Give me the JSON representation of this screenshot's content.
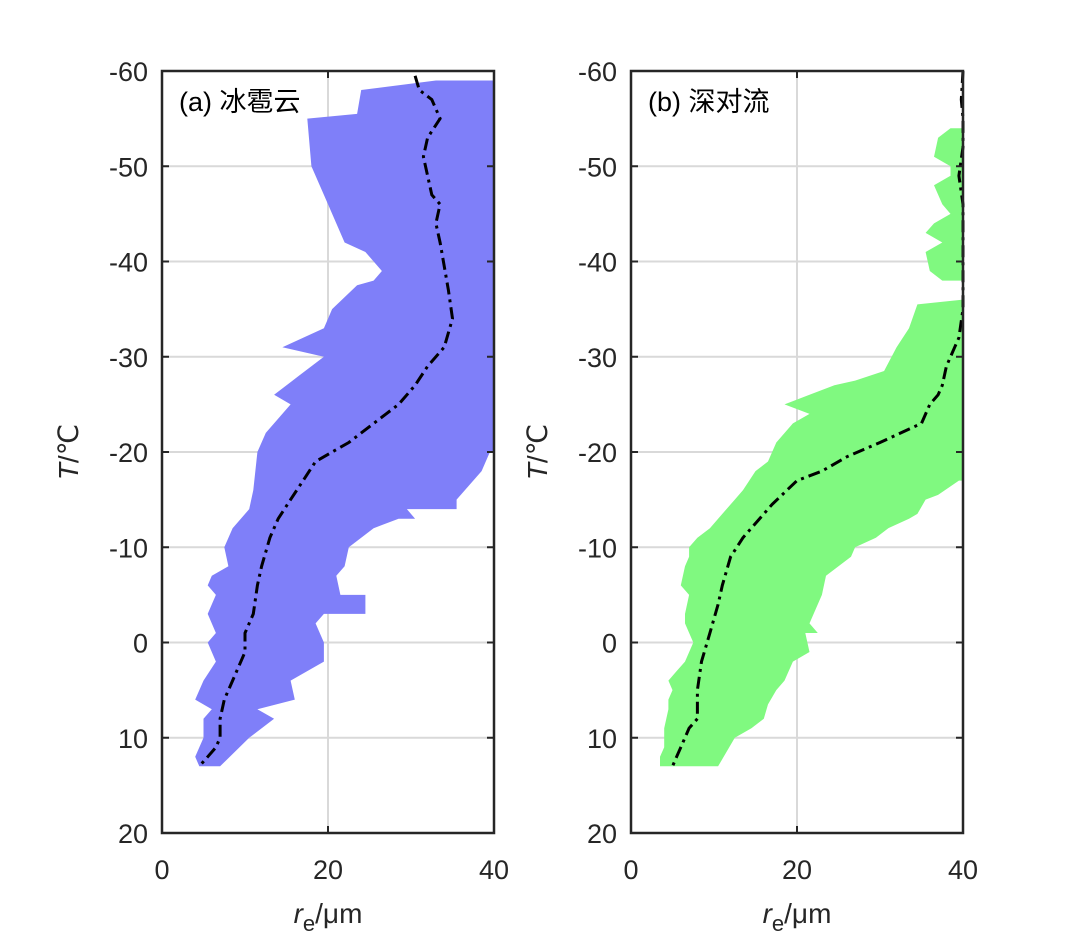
{
  "chart_data": [
    {
      "type": "area",
      "panel_label": "(a) 冰雹云",
      "xlabel_main": "r",
      "xlabel_sub": "e",
      "xlabel_unit": "/μm",
      "ylabel_main": "T",
      "ylabel_unit": "/℃",
      "xlim": [
        0,
        40
      ],
      "ylim": [
        -60,
        20
      ],
      "y_reversed": true,
      "xticks": [
        0,
        20,
        40
      ],
      "yticks": [
        -60,
        -50,
        -40,
        -30,
        -20,
        -10,
        0,
        10,
        20
      ],
      "grid": true,
      "fill_color": "#7f7ff9",
      "series": [
        {
          "kind": "band",
          "left": [
            [
              33.0,
              -59
            ],
            [
              24.0,
              -58
            ],
            [
              23.5,
              -55.5
            ],
            [
              17.5,
              -55
            ],
            [
              18,
              -50
            ],
            [
              20,
              -46
            ],
            [
              22,
              -42
            ],
            [
              24.5,
              -41
            ],
            [
              26.5,
              -39
            ],
            [
              25.5,
              -38
            ],
            [
              23.5,
              -37.5
            ],
            [
              20.5,
              -35
            ],
            [
              19.5,
              -33
            ],
            [
              14.5,
              -31
            ],
            [
              19.5,
              -30
            ],
            [
              16.5,
              -28
            ],
            [
              13.5,
              -26
            ],
            [
              15.5,
              -25
            ],
            [
              12.5,
              -22
            ],
            [
              11.5,
              -20
            ],
            [
              11,
              -16
            ],
            [
              10.5,
              -14
            ],
            [
              8.5,
              -12
            ],
            [
              7.5,
              -10
            ],
            [
              8.0,
              -8
            ],
            [
              6.0,
              -7
            ],
            [
              5.5,
              -6
            ],
            [
              6.5,
              -5
            ],
            [
              5.5,
              -3
            ],
            [
              6.5,
              -1
            ],
            [
              5.5,
              0
            ],
            [
              6.5,
              2
            ],
            [
              5.0,
              4
            ],
            [
              4.0,
              6
            ],
            [
              6.0,
              7
            ],
            [
              5.0,
              8
            ],
            [
              5.0,
              10
            ],
            [
              4.0,
              12
            ],
            [
              4.5,
              13
            ]
          ],
          "right": [
            [
              4.5,
              13
            ],
            [
              7.0,
              13
            ],
            [
              10.5,
              10
            ],
            [
              13.5,
              8
            ],
            [
              11.5,
              7
            ],
            [
              16,
              6
            ],
            [
              15.5,
              4
            ],
            [
              19.5,
              2
            ],
            [
              19.5,
              0
            ],
            [
              18.5,
              -2
            ],
            [
              19.5,
              -3
            ],
            [
              24.5,
              -3
            ],
            [
              24.5,
              -5
            ],
            [
              21.5,
              -5
            ],
            [
              21.0,
              -7
            ],
            [
              22.0,
              -8
            ],
            [
              22.5,
              -10
            ],
            [
              25.5,
              -12
            ],
            [
              28.5,
              -13
            ],
            [
              30.5,
              -13
            ],
            [
              29.5,
              -14
            ],
            [
              35.5,
              -14
            ],
            [
              35.5,
              -15
            ],
            [
              38.5,
              -18
            ],
            [
              39.5,
              -20
            ],
            [
              40,
              -20
            ],
            [
              40,
              -59
            ]
          ]
        },
        {
          "kind": "line",
          "name": "",
          "points": [
            [
              30.5,
              -59.5
            ],
            [
              31,
              -58
            ],
            [
              32.5,
              -57
            ],
            [
              33.5,
              -55
            ],
            [
              32,
              -53
            ],
            [
              31.5,
              -51
            ],
            [
              32.5,
              -47
            ],
            [
              33.5,
              -46
            ],
            [
              33,
              -44
            ],
            [
              33.5,
              -42
            ],
            [
              34.5,
              -37
            ],
            [
              35,
              -34
            ],
            [
              34,
              -31
            ],
            [
              32,
              -29
            ],
            [
              30.5,
              -27
            ],
            [
              28.5,
              -25
            ],
            [
              27,
              -24
            ],
            [
              22.5,
              -21
            ],
            [
              20.5,
              -20
            ],
            [
              18.5,
              -19
            ],
            [
              17,
              -17
            ],
            [
              15.5,
              -15
            ],
            [
              14,
              -13
            ],
            [
              13,
              -11
            ],
            [
              12,
              -8
            ],
            [
              11.5,
              -6
            ],
            [
              11,
              -3
            ],
            [
              10,
              -1
            ],
            [
              10,
              1
            ],
            [
              8.5,
              4
            ],
            [
              7.5,
              6
            ],
            [
              7,
              8
            ],
            [
              7,
              10
            ],
            [
              6.5,
              11
            ],
            [
              5.5,
              12
            ],
            [
              4.5,
              13
            ]
          ]
        }
      ]
    },
    {
      "type": "area",
      "panel_label": "(b) 深对流",
      "xlabel_main": "r",
      "xlabel_sub": "e",
      "xlabel_unit": "/μm",
      "ylabel_main": "T",
      "ylabel_unit": "/℃",
      "xlim": [
        0,
        40
      ],
      "ylim": [
        -60,
        20
      ],
      "y_reversed": true,
      "xticks": [
        0,
        20,
        40
      ],
      "yticks": [
        -60,
        -50,
        -40,
        -30,
        -20,
        -10,
        0,
        10,
        20
      ],
      "grid": true,
      "fill_color": "#80f980",
      "series": [
        {
          "kind": "band",
          "left": [
            [
              38.5,
              -54
            ],
            [
              37,
              -53
            ],
            [
              36.5,
              -51
            ],
            [
              38.5,
              -50
            ],
            [
              38.5,
              -49
            ],
            [
              36.5,
              -48
            ],
            [
              37.5,
              -46
            ],
            [
              38.5,
              -45
            ],
            [
              36.5,
              -44
            ],
            [
              35.5,
              -43
            ],
            [
              37.5,
              -42
            ],
            [
              35.5,
              -41
            ],
            [
              36,
              -39
            ],
            [
              37.5,
              -38
            ]
          ],
          "right": [
            [
              37.5,
              -38
            ],
            [
              40,
              -38
            ],
            [
              40,
              -54
            ]
          ]
        },
        {
          "kind": "band",
          "left": [
            [
              40,
              -36
            ],
            [
              34.5,
              -35.5
            ],
            [
              33.5,
              -33
            ],
            [
              32,
              -31
            ],
            [
              30.5,
              -28.5
            ],
            [
              27,
              -27.5
            ],
            [
              24.5,
              -27
            ],
            [
              21.5,
              -26
            ],
            [
              18.5,
              -25
            ],
            [
              21.5,
              -24
            ],
            [
              19.5,
              -23
            ],
            [
              17.5,
              -21
            ],
            [
              16.5,
              -19
            ],
            [
              15,
              -18
            ],
            [
              13.5,
              -16
            ],
            [
              12.5,
              -15
            ],
            [
              10.5,
              -13
            ],
            [
              9.5,
              -12
            ],
            [
              8,
              -11
            ],
            [
              7,
              -10
            ],
            [
              7,
              -9
            ],
            [
              6.5,
              -8
            ],
            [
              6,
              -6
            ],
            [
              7,
              -5
            ],
            [
              6.5,
              -3
            ],
            [
              6.5,
              -2
            ],
            [
              7.5,
              0
            ],
            [
              6.5,
              2
            ],
            [
              5.5,
              3
            ],
            [
              4.5,
              4
            ],
            [
              5,
              5
            ],
            [
              4.5,
              6
            ],
            [
              4.5,
              7
            ],
            [
              4,
              9
            ],
            [
              4,
              11
            ],
            [
              3.5,
              12
            ],
            [
              3.5,
              13
            ]
          ],
          "right": [
            [
              3.5,
              13
            ],
            [
              10.5,
              13
            ],
            [
              12.5,
              10
            ],
            [
              14.5,
              9
            ],
            [
              16,
              8
            ],
            [
              16.5,
              6.5
            ],
            [
              17.5,
              5
            ],
            [
              18.5,
              4
            ],
            [
              19.5,
              2
            ],
            [
              21.5,
              1
            ],
            [
              21,
              -1
            ],
            [
              22.5,
              -1
            ],
            [
              21.5,
              -2
            ],
            [
              23,
              -5
            ],
            [
              23.5,
              -7
            ],
            [
              26.5,
              -9
            ],
            [
              27,
              -10
            ],
            [
              29.5,
              -11
            ],
            [
              31,
              -12
            ],
            [
              33.5,
              -13
            ],
            [
              34.5,
              -13.5
            ],
            [
              35.5,
              -15
            ],
            [
              37,
              -15.5
            ],
            [
              39.5,
              -17
            ],
            [
              40,
              -17
            ],
            [
              40,
              -36
            ]
          ]
        },
        {
          "kind": "line",
          "name": "",
          "points": [
            [
              40,
              -60
            ],
            [
              39.8,
              -57
            ],
            [
              40,
              -55
            ],
            [
              40,
              -52
            ],
            [
              39.5,
              -49
            ],
            [
              40,
              -46
            ],
            [
              40,
              -43
            ],
            [
              40,
              -40
            ],
            [
              40,
              -38
            ],
            [
              40,
              -35
            ],
            [
              39.5,
              -32
            ],
            [
              39,
              -31
            ],
            [
              38,
              -29
            ],
            [
              37.5,
              -27
            ],
            [
              37,
              -26
            ],
            [
              36,
              -25
            ],
            [
              35,
              -23
            ],
            [
              30,
              -21
            ],
            [
              26,
              -19.5
            ],
            [
              23,
              -18
            ],
            [
              20,
              -17
            ],
            [
              17,
              -14.5
            ],
            [
              13.5,
              -11
            ],
            [
              12,
              -9
            ],
            [
              11,
              -6
            ],
            [
              10.5,
              -4
            ],
            [
              9.5,
              -1
            ],
            [
              8.5,
              2
            ],
            [
              8,
              5
            ],
            [
              8,
              8
            ],
            [
              7,
              9
            ],
            [
              6,
              11
            ],
            [
              5.5,
              12
            ],
            [
              5,
              13
            ]
          ]
        }
      ]
    }
  ]
}
